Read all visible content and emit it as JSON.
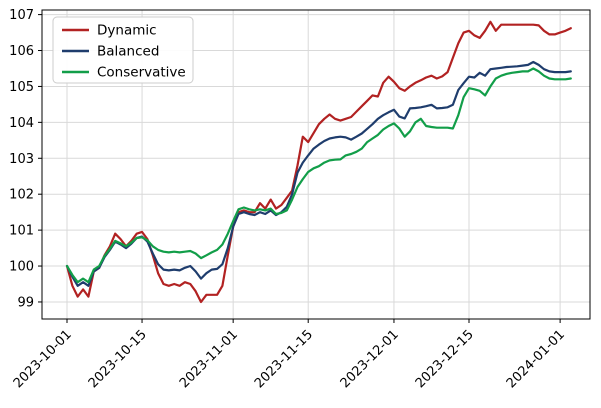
{
  "chart_data": {
    "type": "line",
    "title": "",
    "xlabel": "",
    "ylabel": "",
    "grid": true,
    "legend_position": "upper-left",
    "x_start_date": "2023-10-01",
    "x_frequency": "daily",
    "x_tick_labels": [
      "2023-10-01",
      "2023-10-15",
      "2023-11-01",
      "2023-11-15",
      "2023-12-01",
      "2023-12-15",
      "2024-01-01"
    ],
    "x_tick_day_index": [
      0,
      14,
      31,
      45,
      61,
      75,
      92
    ],
    "y_tick_labels": [
      "99",
      "100",
      "101",
      "102",
      "103",
      "104",
      "105",
      "106",
      "107"
    ],
    "y_ticks": [
      99,
      100,
      101,
      102,
      103,
      104,
      105,
      106,
      107
    ],
    "ylim": [
      98.53,
      107.13
    ],
    "series": [
      {
        "name": "Dynamic",
        "color": "#b22222",
        "values": [
          100.0,
          99.45,
          99.15,
          99.35,
          99.15,
          99.85,
          99.95,
          100.3,
          100.55,
          100.9,
          100.75,
          100.55,
          100.7,
          100.9,
          100.95,
          100.75,
          100.3,
          99.8,
          99.5,
          99.45,
          99.5,
          99.45,
          99.55,
          99.5,
          99.3,
          99.0,
          99.2,
          99.2,
          99.2,
          99.45,
          100.3,
          101.1,
          101.5,
          101.55,
          101.5,
          101.5,
          101.75,
          101.6,
          101.85,
          101.6,
          101.7,
          101.9,
          102.1,
          102.8,
          103.6,
          103.45,
          103.7,
          103.95,
          104.1,
          104.22,
          104.1,
          104.05,
          104.1,
          104.15,
          104.3,
          104.45,
          104.6,
          104.75,
          104.72,
          105.1,
          105.27,
          105.13,
          104.95,
          104.88,
          105.0,
          105.1,
          105.17,
          105.25,
          105.3,
          105.22,
          105.28,
          105.4,
          105.8,
          106.2,
          106.5,
          106.55,
          106.42,
          106.35,
          106.55,
          106.8,
          106.55,
          106.72,
          106.72,
          106.72,
          106.72,
          106.72,
          106.72,
          106.72,
          106.7,
          106.55,
          106.45,
          106.45,
          106.5,
          106.55,
          106.62
        ]
      },
      {
        "name": "Balanced",
        "color": "#1f3d6d",
        "values": [
          100.0,
          99.7,
          99.45,
          99.55,
          99.45,
          99.85,
          99.95,
          100.25,
          100.45,
          100.68,
          100.6,
          100.5,
          100.62,
          100.78,
          100.82,
          100.68,
          100.35,
          100.05,
          99.9,
          99.88,
          99.9,
          99.88,
          99.95,
          100.0,
          99.85,
          99.65,
          99.8,
          99.9,
          99.92,
          100.05,
          100.5,
          101.1,
          101.45,
          101.5,
          101.45,
          101.42,
          101.5,
          101.45,
          101.55,
          101.42,
          101.5,
          101.65,
          102.0,
          102.6,
          102.88,
          103.08,
          103.27,
          103.38,
          103.48,
          103.55,
          103.58,
          103.6,
          103.58,
          103.52,
          103.6,
          103.69,
          103.82,
          103.95,
          104.1,
          104.2,
          104.28,
          104.35,
          104.16,
          104.11,
          104.39,
          104.4,
          104.42,
          104.45,
          104.49,
          104.39,
          104.4,
          104.42,
          104.49,
          104.9,
          105.09,
          105.27,
          105.25,
          105.38,
          105.3,
          105.48,
          105.5,
          105.52,
          105.54,
          105.55,
          105.56,
          105.58,
          105.6,
          105.68,
          105.6,
          105.48,
          105.42,
          105.4,
          105.4,
          105.4,
          105.42
        ]
      },
      {
        "name": "Conservative",
        "color": "#129e49",
        "values": [
          100.0,
          99.75,
          99.55,
          99.65,
          99.55,
          99.9,
          100.0,
          100.28,
          100.48,
          100.7,
          100.63,
          100.55,
          100.65,
          100.78,
          100.8,
          100.72,
          100.55,
          100.45,
          100.4,
          100.38,
          100.4,
          100.38,
          100.4,
          100.42,
          100.35,
          100.22,
          100.3,
          100.38,
          100.45,
          100.6,
          100.9,
          101.25,
          101.58,
          101.63,
          101.58,
          101.55,
          101.58,
          101.55,
          101.6,
          101.45,
          101.48,
          101.55,
          101.85,
          102.2,
          102.42,
          102.62,
          102.72,
          102.78,
          102.88,
          102.94,
          102.96,
          102.97,
          103.08,
          103.12,
          103.18,
          103.27,
          103.45,
          103.55,
          103.65,
          103.8,
          103.9,
          103.97,
          103.83,
          103.6,
          103.75,
          104.0,
          104.1,
          103.9,
          103.87,
          103.85,
          103.85,
          103.85,
          103.83,
          104.2,
          104.7,
          104.95,
          104.92,
          104.88,
          104.75,
          105.0,
          105.22,
          105.3,
          105.35,
          105.38,
          105.4,
          105.42,
          105.42,
          105.5,
          105.42,
          105.3,
          105.22,
          105.2,
          105.2,
          105.2,
          105.22
        ]
      }
    ]
  }
}
